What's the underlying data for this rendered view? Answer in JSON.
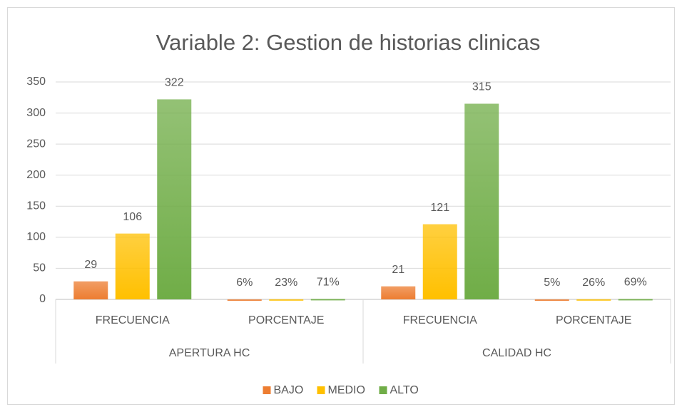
{
  "chart_data": {
    "type": "bar",
    "title": "Variable 2: Gestion de historias clinicas",
    "categories": [
      "FRECUENCIA",
      "PORCENTAJE",
      "FRECUENCIA",
      "PORCENTAJE"
    ],
    "groups": [
      "APERTURA HC",
      "CALIDAD HC"
    ],
    "series": [
      {
        "name": "BAJO",
        "color": "#ed7d31",
        "values": [
          29,
          0.06,
          21,
          0.05
        ],
        "value_labels": [
          "29",
          "6%",
          "21",
          "5%"
        ]
      },
      {
        "name": "MEDIO",
        "color": "#ffc000",
        "values": [
          106,
          0.23,
          121,
          0.26
        ],
        "value_labels": [
          "106",
          "23%",
          "121",
          "26%"
        ]
      },
      {
        "name": "ALTO",
        "color": "#70ad47",
        "values": [
          322,
          0.71,
          315,
          0.69
        ],
        "value_labels": [
          "322",
          "71%",
          "315",
          "69%"
        ]
      }
    ],
    "ylim": [
      0,
      350
    ],
    "yticks": [
      0,
      50,
      100,
      150,
      200,
      250,
      300,
      350
    ],
    "grid": true,
    "legend": "bottom"
  }
}
